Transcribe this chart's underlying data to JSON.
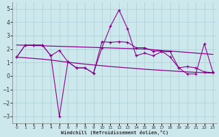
{
  "xlabel": "Windchill (Refroidissement éolien,°C)",
  "x": [
    0,
    1,
    2,
    3,
    4,
    5,
    6,
    7,
    8,
    9,
    10,
    11,
    12,
    13,
    14,
    15,
    16,
    17,
    18,
    19,
    20,
    21,
    22,
    23
  ],
  "line1_y": [
    1.4,
    2.3,
    2.3,
    2.3,
    1.5,
    1.9,
    1.05,
    0.6,
    0.6,
    0.2,
    2.1,
    3.7,
    4.9,
    3.5,
    1.5,
    1.7,
    1.5,
    1.8,
    1.8,
    0.6,
    0.15,
    0.15,
    2.4,
    0.3
  ],
  "trend1_y": [
    2.3,
    2.28,
    2.26,
    2.24,
    2.22,
    2.2,
    2.18,
    2.16,
    2.14,
    2.12,
    2.1,
    2.08,
    2.06,
    2.04,
    2.02,
    2.0,
    1.95,
    1.9,
    1.85,
    1.8,
    1.75,
    1.7,
    1.65,
    1.6
  ],
  "trend2_y": [
    1.4,
    1.35,
    1.3,
    1.25,
    1.18,
    1.1,
    1.02,
    0.95,
    0.88,
    0.82,
    0.76,
    0.7,
    0.65,
    0.6,
    0.55,
    0.5,
    0.46,
    0.42,
    0.38,
    0.34,
    0.3,
    0.27,
    0.24,
    0.22
  ],
  "line2_y": [
    1.4,
    2.3,
    2.3,
    2.3,
    1.5,
    -3.0,
    1.05,
    0.6,
    0.6,
    0.2,
    2.55,
    2.5,
    2.55,
    2.5,
    2.1,
    2.1,
    1.85,
    1.85,
    1.4,
    0.6,
    0.7,
    0.6,
    0.3,
    0.25
  ],
  "bg_color": "#cce8ed",
  "line_color": "#8b008b",
  "grid_color": "#aacdd5",
  "ylim": [
    -3.5,
    5.5
  ],
  "xlim": [
    -0.5,
    23.5
  ],
  "yticks": [
    -3,
    -2,
    -1,
    0,
    1,
    2,
    3,
    4,
    5
  ]
}
